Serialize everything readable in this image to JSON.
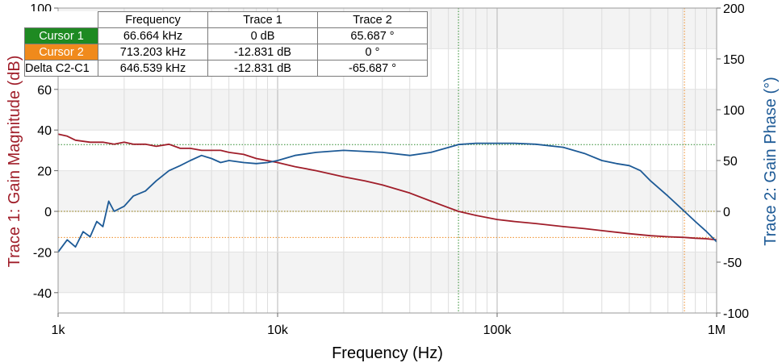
{
  "chart_data": {
    "type": "line",
    "xscale": "log",
    "xlim": [
      1000,
      1000000
    ],
    "xlabel": "Frequency (Hz)",
    "x_ticks": [
      1000,
      10000,
      100000,
      1000000
    ],
    "x_tick_labels": [
      "1k",
      "10k",
      "100k",
      "1M"
    ],
    "ylabel_left": "Trace 1: Gain Magnitude (dB)",
    "ylim_left": [
      -50,
      100
    ],
    "y_ticks_left": [
      -40,
      -20,
      0,
      20,
      40,
      60,
      80,
      100
    ],
    "ylabel_right": "Trace 2: Gain Phase (°)",
    "ylim_right": [
      -100,
      200
    ],
    "y_ticks_right": [
      -100,
      -50,
      0,
      50,
      100,
      150,
      200
    ],
    "grid": true,
    "series": [
      {
        "name": "Trace 1",
        "axis": "left",
        "color": "#a01e2a",
        "x": [
          1000,
          1100,
          1200,
          1400,
          1600,
          1800,
          2000,
          2200,
          2500,
          2800,
          3200,
          3600,
          4000,
          4500,
          5000,
          5500,
          6000,
          7000,
          8000,
          10000,
          12000,
          15000,
          20000,
          25000,
          30000,
          40000,
          50000,
          66664,
          80000,
          100000,
          120000,
          150000,
          200000,
          250000,
          300000,
          400000,
          500000,
          600000,
          713203,
          800000,
          900000,
          1000000
        ],
        "y": [
          38,
          37,
          35,
          34,
          34,
          33,
          34,
          33,
          33,
          32,
          33,
          31,
          31,
          30,
          30,
          30,
          29,
          28,
          26,
          24,
          22,
          20,
          17,
          15,
          13,
          9,
          5,
          0,
          -2,
          -4,
          -5,
          -6,
          -7.5,
          -8.5,
          -9.5,
          -11,
          -12,
          -12.5,
          -12.8,
          -13.2,
          -13.5,
          -14
        ]
      },
      {
        "name": "Trace 2",
        "axis": "right",
        "color": "#1d5a96",
        "x": [
          1000,
          1100,
          1200,
          1300,
          1400,
          1500,
          1600,
          1700,
          1800,
          2000,
          2200,
          2500,
          2800,
          3200,
          3600,
          4000,
          4500,
          5000,
          5500,
          6000,
          7000,
          8000,
          9000,
          10000,
          12000,
          15000,
          20000,
          30000,
          40000,
          50000,
          66664,
          80000,
          100000,
          120000,
          150000,
          200000,
          250000,
          300000,
          350000,
          400000,
          450000,
          500000,
          600000,
          713203,
          800000,
          900000,
          1000000
        ],
        "y": [
          -40,
          -28,
          -35,
          -20,
          -25,
          -10,
          -15,
          10,
          0,
          5,
          15,
          20,
          30,
          40,
          45,
          50,
          55,
          52,
          48,
          50,
          48,
          47,
          48,
          50,
          55,
          58,
          60,
          58,
          55,
          58,
          65.687,
          67,
          67,
          67,
          66,
          63,
          57,
          50,
          47,
          45,
          40,
          30,
          15,
          0,
          -10,
          -20,
          -30
        ]
      }
    ],
    "reference_lines": [
      {
        "axis": "left",
        "value": 0,
        "color": "#8a7000"
      },
      {
        "axis": "left",
        "value": -12.831,
        "color": "#ee8a22"
      },
      {
        "axis": "right",
        "value": 65.687,
        "color": "#2e8b2e"
      }
    ],
    "cursors": [
      {
        "name": "Cursor 1",
        "frequency_hz": 66664,
        "color": "#2e8b2e"
      },
      {
        "name": "Cursor 2",
        "frequency_hz": 713203,
        "color": "#ee8a22"
      }
    ]
  },
  "cursor_table": {
    "headers": [
      "",
      "Frequency",
      "Trace 1",
      "Trace 2"
    ],
    "rows": [
      {
        "label": "Cursor 1",
        "color": "#1e8a22",
        "frequency": "66.664 kHz",
        "trace1": "0 dB",
        "trace2": "65.687 °"
      },
      {
        "label": "Cursor 2",
        "color": "#f08a1c",
        "frequency": "713.203 kHz",
        "trace1": "-12.831 dB",
        "trace2": "0 °"
      },
      {
        "label": "Delta C2-C1",
        "color": "",
        "frequency": "646.539 kHz",
        "trace1": "-12.831 dB",
        "trace2": "-65.687 °"
      }
    ]
  }
}
